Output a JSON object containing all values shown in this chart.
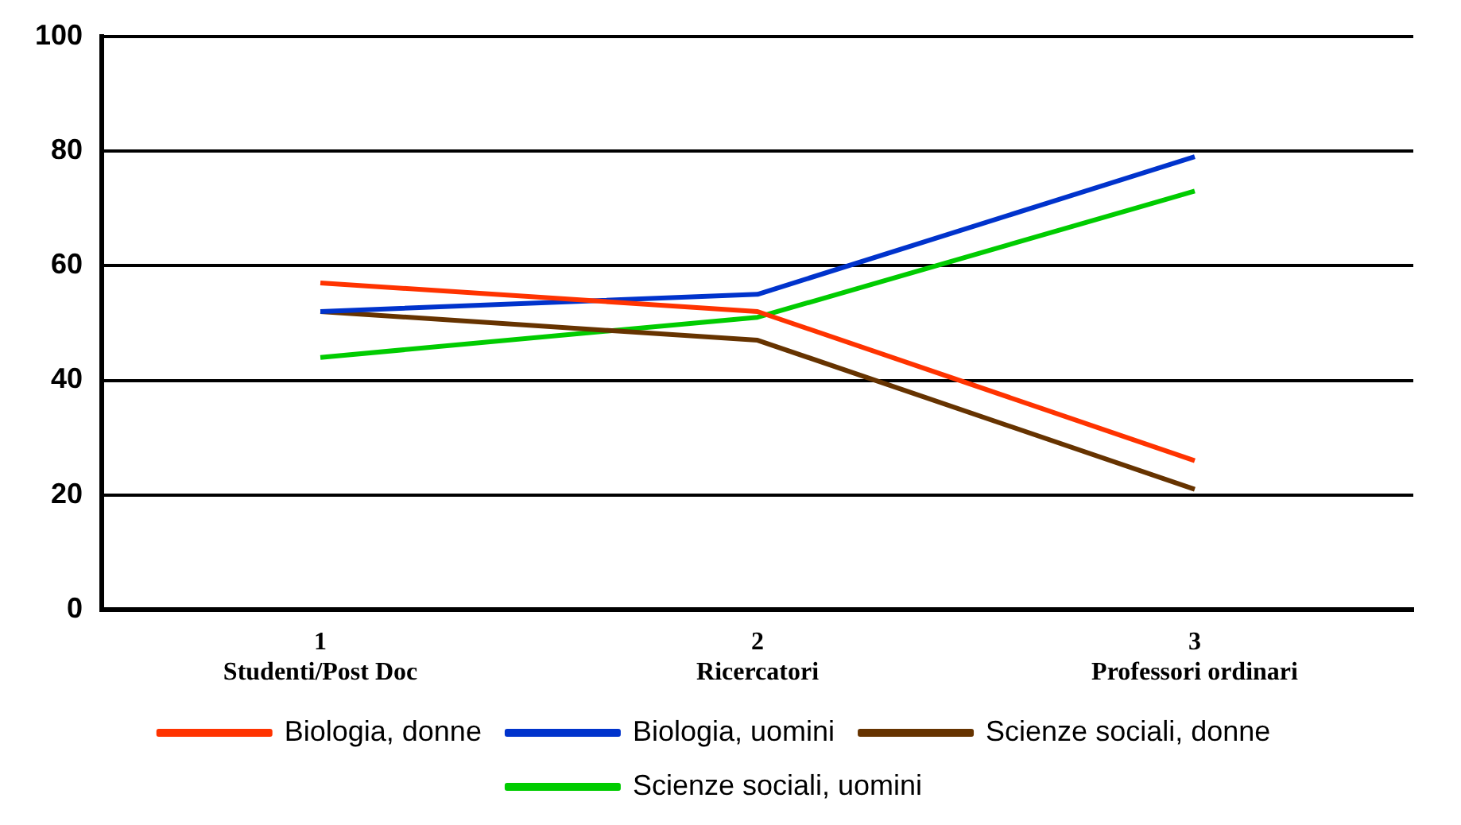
{
  "chart_data": {
    "type": "line",
    "categories": [
      "1\nStudenti/Post Doc",
      "2\nRicercatori",
      "3\nProfessori ordinari"
    ],
    "series": [
      {
        "name": "Biologia, donne",
        "color": "#ff3300",
        "values": [
          57,
          52,
          26
        ]
      },
      {
        "name": "Biologia, uomini",
        "color": "#0033cc",
        "values": [
          52,
          55,
          79
        ]
      },
      {
        "name": "Scienze sociali, donne",
        "color": "#663300",
        "values": [
          52,
          47,
          21
        ]
      },
      {
        "name": "Scienze sociali, uomini",
        "color": "#00cc00",
        "values": [
          44,
          51,
          73
        ]
      }
    ],
    "ylim": [
      0,
      100
    ],
    "yticks": [
      0,
      20,
      40,
      60,
      80,
      100
    ],
    "grid": "y",
    "legend": "bottom",
    "marker": "none",
    "line_style": "solid"
  }
}
